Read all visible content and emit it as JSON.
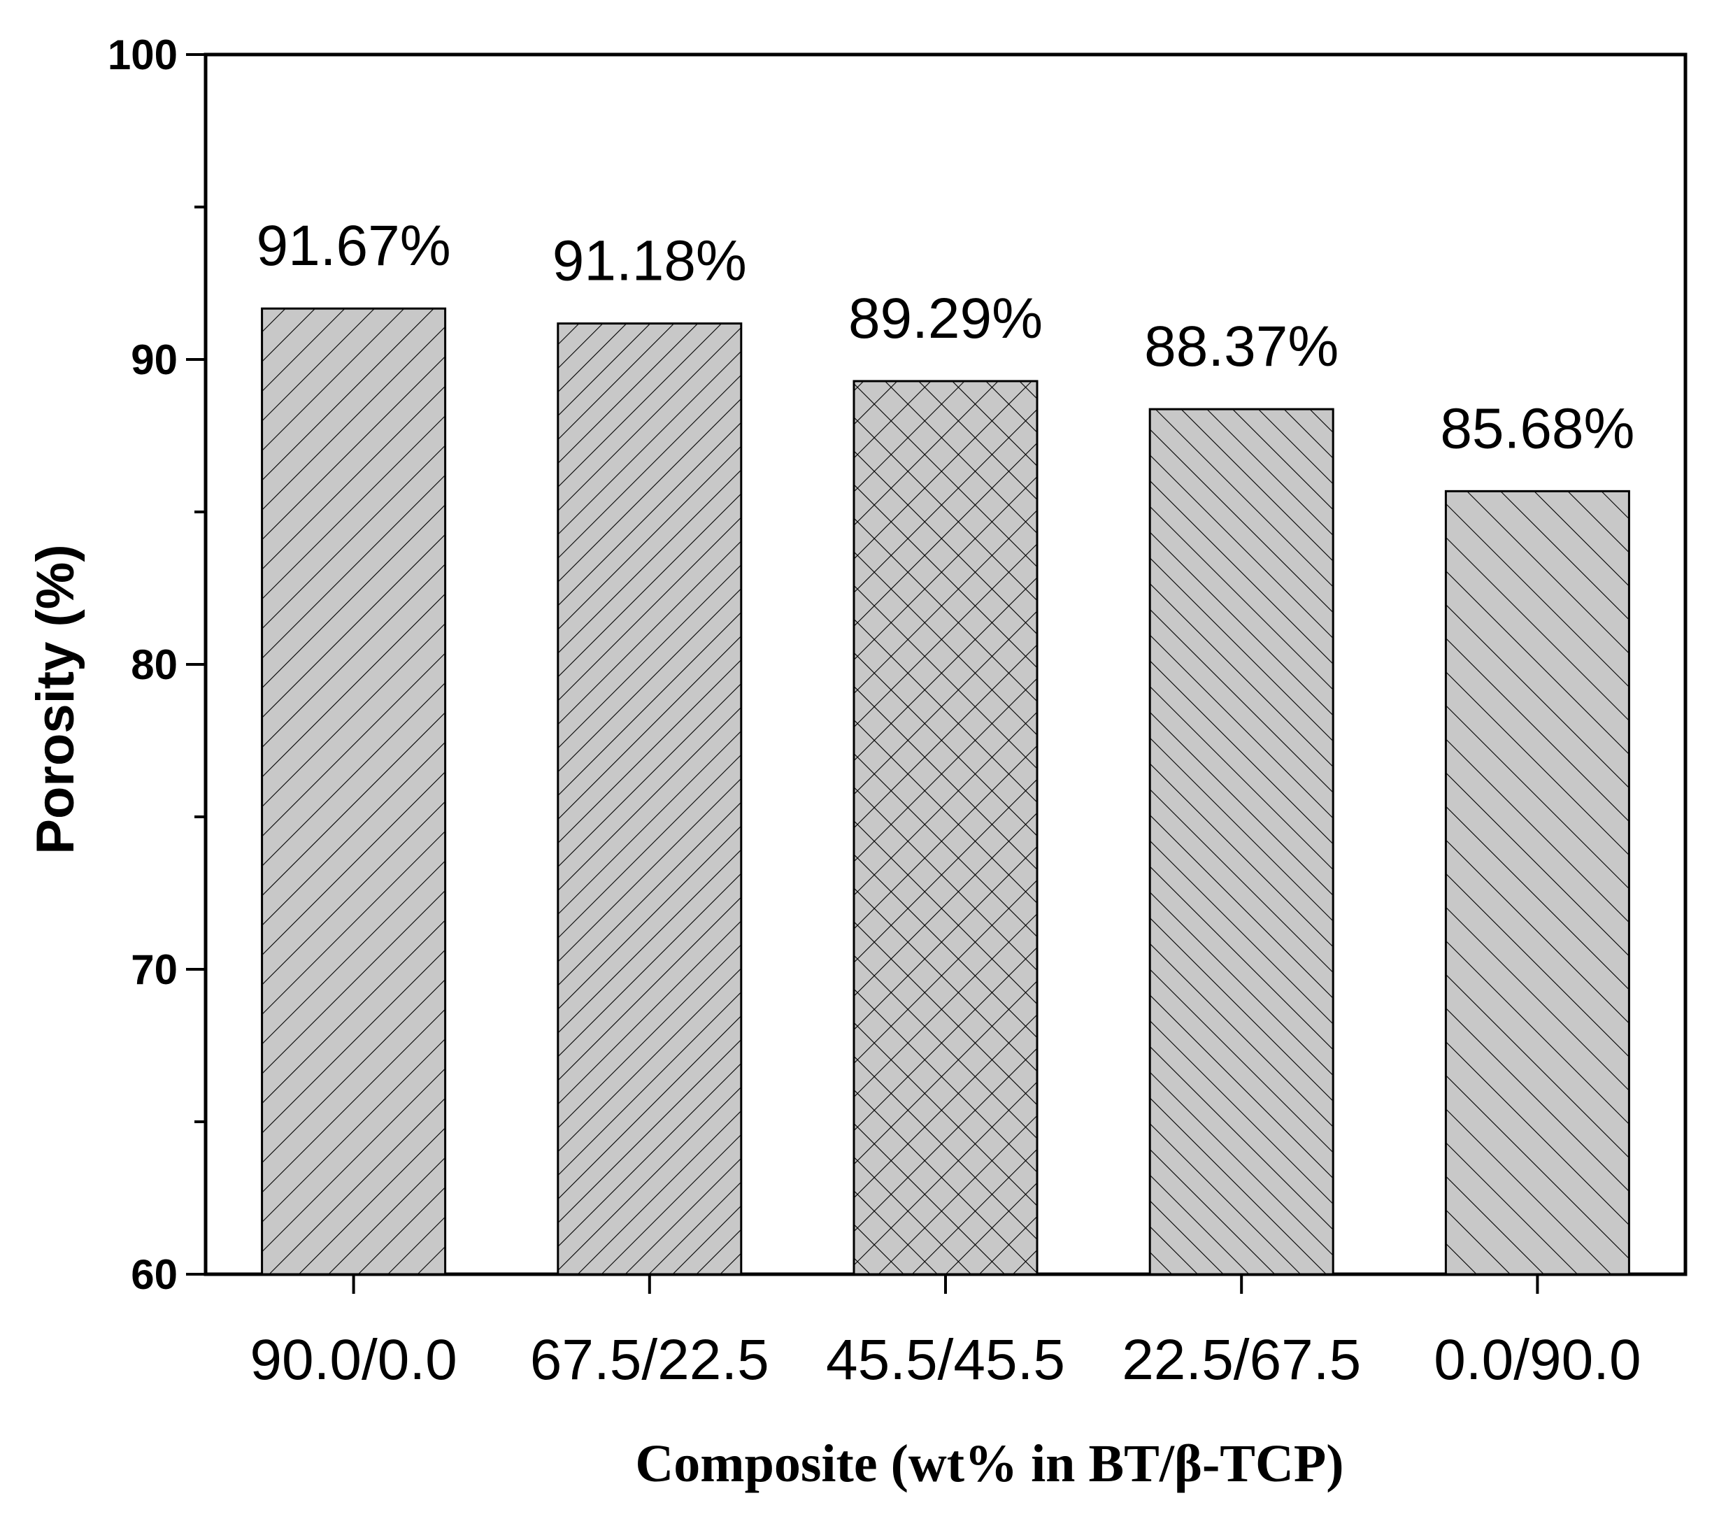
{
  "chart_data": {
    "type": "bar",
    "categories": [
      "90.0/0.0",
      "67.5/22.5",
      "45.5/45.5",
      "22.5/67.5",
      "0.0/90.0"
    ],
    "values": [
      91.67,
      91.18,
      89.29,
      88.37,
      85.68
    ],
    "data_labels": [
      "91.67%",
      "91.18%",
      "89.29%",
      "88.37%",
      "85.68%"
    ],
    "bar_patterns": [
      "diagonal-up",
      "diagonal-up-dense",
      "crosshatch",
      "diagonal-down",
      "diagonal-down-sparse"
    ],
    "bar_color": "#c8c8c8",
    "xlabel": "Composite (wt% in BT/β-TCP)",
    "ylabel": "Porosity (%)",
    "ylim": [
      60,
      100
    ],
    "yticks": [
      60,
      70,
      80,
      90,
      100
    ],
    "grid": false,
    "title": ""
  }
}
